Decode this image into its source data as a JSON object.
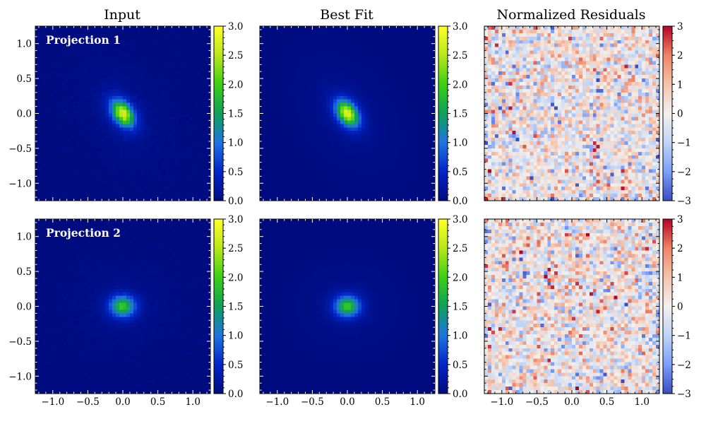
{
  "figure": {
    "column_titles": [
      "Input",
      "Best Fit",
      "Normalized Residuals"
    ],
    "row_labels": [
      "Projection 1",
      "Projection 2"
    ]
  },
  "chart_data": {
    "type": "heatmap",
    "panels": [
      {
        "row": 0,
        "col": 0,
        "kind": "model",
        "title": "Input",
        "label": "Projection 1",
        "sigma_major": 0.14,
        "sigma_minor": 0.09,
        "angle_deg": -55,
        "peak": 3.0,
        "noise": 0.05,
        "seed": 11
      },
      {
        "row": 0,
        "col": 1,
        "kind": "model",
        "title": "Best Fit",
        "sigma_major": 0.14,
        "sigma_minor": 0.09,
        "angle_deg": -55,
        "peak": 3.0,
        "noise": 0.0,
        "seed": 12
      },
      {
        "row": 0,
        "col": 2,
        "kind": "residual",
        "title": "Normalized Residuals",
        "seed": 13
      },
      {
        "row": 1,
        "col": 0,
        "kind": "model",
        "label": "Projection 2",
        "sigma_major": 0.12,
        "sigma_minor": 0.1,
        "angle_deg": 0,
        "peak": 2.05,
        "noise": 0.04,
        "seed": 21
      },
      {
        "row": 1,
        "col": 1,
        "kind": "model",
        "sigma_major": 0.12,
        "sigma_minor": 0.1,
        "angle_deg": 0,
        "peak": 2.05,
        "noise": 0.0,
        "seed": 22
      },
      {
        "row": 1,
        "col": 2,
        "kind": "residual",
        "seed": 23
      }
    ],
    "grid_size": 50,
    "x_range": [
      -1.25,
      1.25
    ],
    "y_range": [
      -1.25,
      1.25
    ],
    "x_ticks": [
      -1.0,
      -0.5,
      0.0,
      0.5,
      1.0
    ],
    "x_tick_labels": [
      "−1.0",
      "−0.5",
      "0.0",
      "0.5",
      "1.0"
    ],
    "y_ticks": [
      1.0,
      0.5,
      0.0,
      -0.5,
      -1.0
    ],
    "y_tick_labels": [
      "1.0",
      "0.5",
      "0.0",
      "−0.5",
      "−1.0"
    ],
    "model_colorbar": {
      "colormap": "blue-green-yellow",
      "range": [
        0,
        3
      ],
      "ticks": [
        0,
        0.5,
        1,
        1.5,
        2,
        2.5,
        3
      ],
      "tick_labels": [
        "0.0",
        "0.5",
        "1.0",
        "1.5",
        "2.0",
        "2.5",
        "3.0"
      ]
    },
    "residual_colorbar": {
      "colormap": "coolwarm",
      "range": [
        -3,
        3
      ],
      "ticks": [
        3,
        2,
        1,
        0,
        -1,
        -2,
        -3
      ],
      "tick_labels": [
        "3",
        "2",
        "1",
        "0",
        "−1",
        "−2",
        "−3"
      ]
    },
    "model_colors": [
      "#000b7e",
      "#0025c8",
      "#1f74e0",
      "#0ea05a",
      "#3ccf16",
      "#b8e81a",
      "#ffff2a"
    ],
    "residual_colors": [
      "#3b4cc0",
      "#7b9ff9",
      "#c0d4f5",
      "#f2f0ee",
      "#f5c4ad",
      "#ee8468",
      "#b40426"
    ]
  }
}
